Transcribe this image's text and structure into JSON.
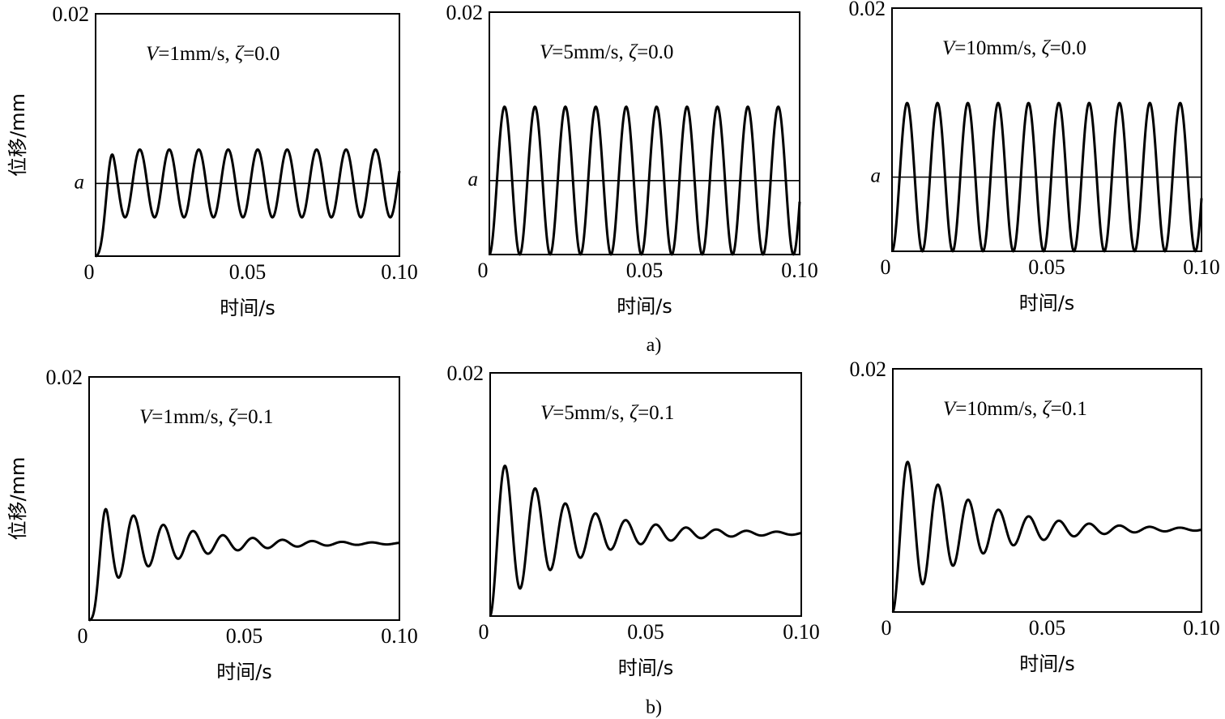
{
  "figure": {
    "subfigure_labels": [
      "a)",
      "b)"
    ]
  },
  "chart_data": [
    {
      "type": "line",
      "row": "a",
      "col": 0,
      "ylabel": "位移/mm",
      "xlabel": "时间/s",
      "xlim": [
        0,
        0.1
      ],
      "ylim": [
        0,
        0.02
      ],
      "xtick_labels": [
        "0",
        "0.05",
        "0.10"
      ],
      "ytick_labels": [
        "0.02"
      ],
      "annotation": {
        "var": "V",
        "rest": "=1mm/s,  ",
        "zeta": "ζ",
        "zval": "=0.0"
      },
      "ref_line": {
        "label": "a",
        "y": 0.006
      },
      "series": [
        {
          "mean": 0.006,
          "amplitude": 0.0028,
          "period": 0.0097,
          "damping": 0.0,
          "ramp": 0.006
        }
      ]
    },
    {
      "type": "line",
      "row": "a",
      "col": 1,
      "ylabel": "",
      "xlabel": "时间/s",
      "xlim": [
        0,
        0.1
      ],
      "ylim": [
        0,
        0.02
      ],
      "xtick_labels": [
        "0",
        "0.05",
        "0.10"
      ],
      "ytick_labels": [
        "0.02"
      ],
      "annotation": {
        "var": "V",
        "rest": "=5mm/s,  ",
        "zeta": "ζ",
        "zval": "=0.0"
      },
      "ref_line": {
        "label": "a",
        "y": 0.0061
      },
      "series": [
        {
          "mean": 0.0061,
          "amplitude": 0.0061,
          "period": 0.0098,
          "damping": 0.0,
          "ramp": 0.0
        }
      ]
    },
    {
      "type": "line",
      "row": "a",
      "col": 2,
      "ylabel": "",
      "xlabel": "时间/s",
      "xlim": [
        0,
        0.1
      ],
      "ylim": [
        0,
        0.02
      ],
      "xtick_labels": [
        "0",
        "0.05",
        "0.10"
      ],
      "ytick_labels": [
        "0.02"
      ],
      "annotation": {
        "var": "V",
        "rest": "=10mm/s,  ",
        "zeta": "ζ",
        "zval": "=0.0"
      },
      "ref_line": {
        "label": "a",
        "y": 0.0061
      },
      "series": [
        {
          "mean": 0.0061,
          "amplitude": 0.0061,
          "period": 0.0098,
          "damping": 0.0,
          "ramp": 0.0
        }
      ]
    },
    {
      "type": "line",
      "row": "b",
      "col": 0,
      "ylabel": "位移/mm",
      "xlabel": "时间/s",
      "xlim": [
        0,
        0.1
      ],
      "ylim": [
        0,
        0.02
      ],
      "xtick_labels": [
        "0",
        "0.05",
        "0.10"
      ],
      "ytick_labels": [
        "0.02"
      ],
      "annotation": {
        "var": "V",
        "rest": "=1mm/s,  ",
        "zeta": "ζ",
        "zval": "=0.1"
      },
      "ref_line": null,
      "series": [
        {
          "mean": 0.0063,
          "amplitude": 0.0042,
          "period": 0.0096,
          "damping": 42,
          "ramp": 0.006
        }
      ]
    },
    {
      "type": "line",
      "row": "b",
      "col": 1,
      "ylabel": "",
      "xlabel": "时间/s",
      "xlim": [
        0,
        0.1
      ],
      "ylim": [
        0,
        0.02
      ],
      "xtick_labels": [
        "0",
        "0.05",
        "0.10"
      ],
      "ytick_labels": [
        "0.02"
      ],
      "annotation": {
        "var": "V",
        "rest": "=5mm/s, ",
        "zeta": "ζ",
        "zval": "=0.1"
      },
      "ref_line": null,
      "series": [
        {
          "mean": 0.0068,
          "amplitude": 0.0068,
          "period": 0.0097,
          "damping": 42,
          "ramp": 0.0
        }
      ]
    },
    {
      "type": "line",
      "row": "b",
      "col": 2,
      "ylabel": "",
      "xlabel": "时间/s",
      "xlim": [
        0,
        0.1
      ],
      "ylim": [
        0,
        0.02
      ],
      "xtick_labels": [
        "0",
        "0.05",
        "0.10"
      ],
      "ytick_labels": [
        "0.02"
      ],
      "annotation": {
        "var": "V",
        "rest": "=10mm/s,  ",
        "zeta": "ζ",
        "zval": "=0.1"
      },
      "ref_line": null,
      "series": [
        {
          "mean": 0.0068,
          "amplitude": 0.0068,
          "period": 0.0098,
          "damping": 42,
          "ramp": 0.0
        }
      ]
    }
  ]
}
